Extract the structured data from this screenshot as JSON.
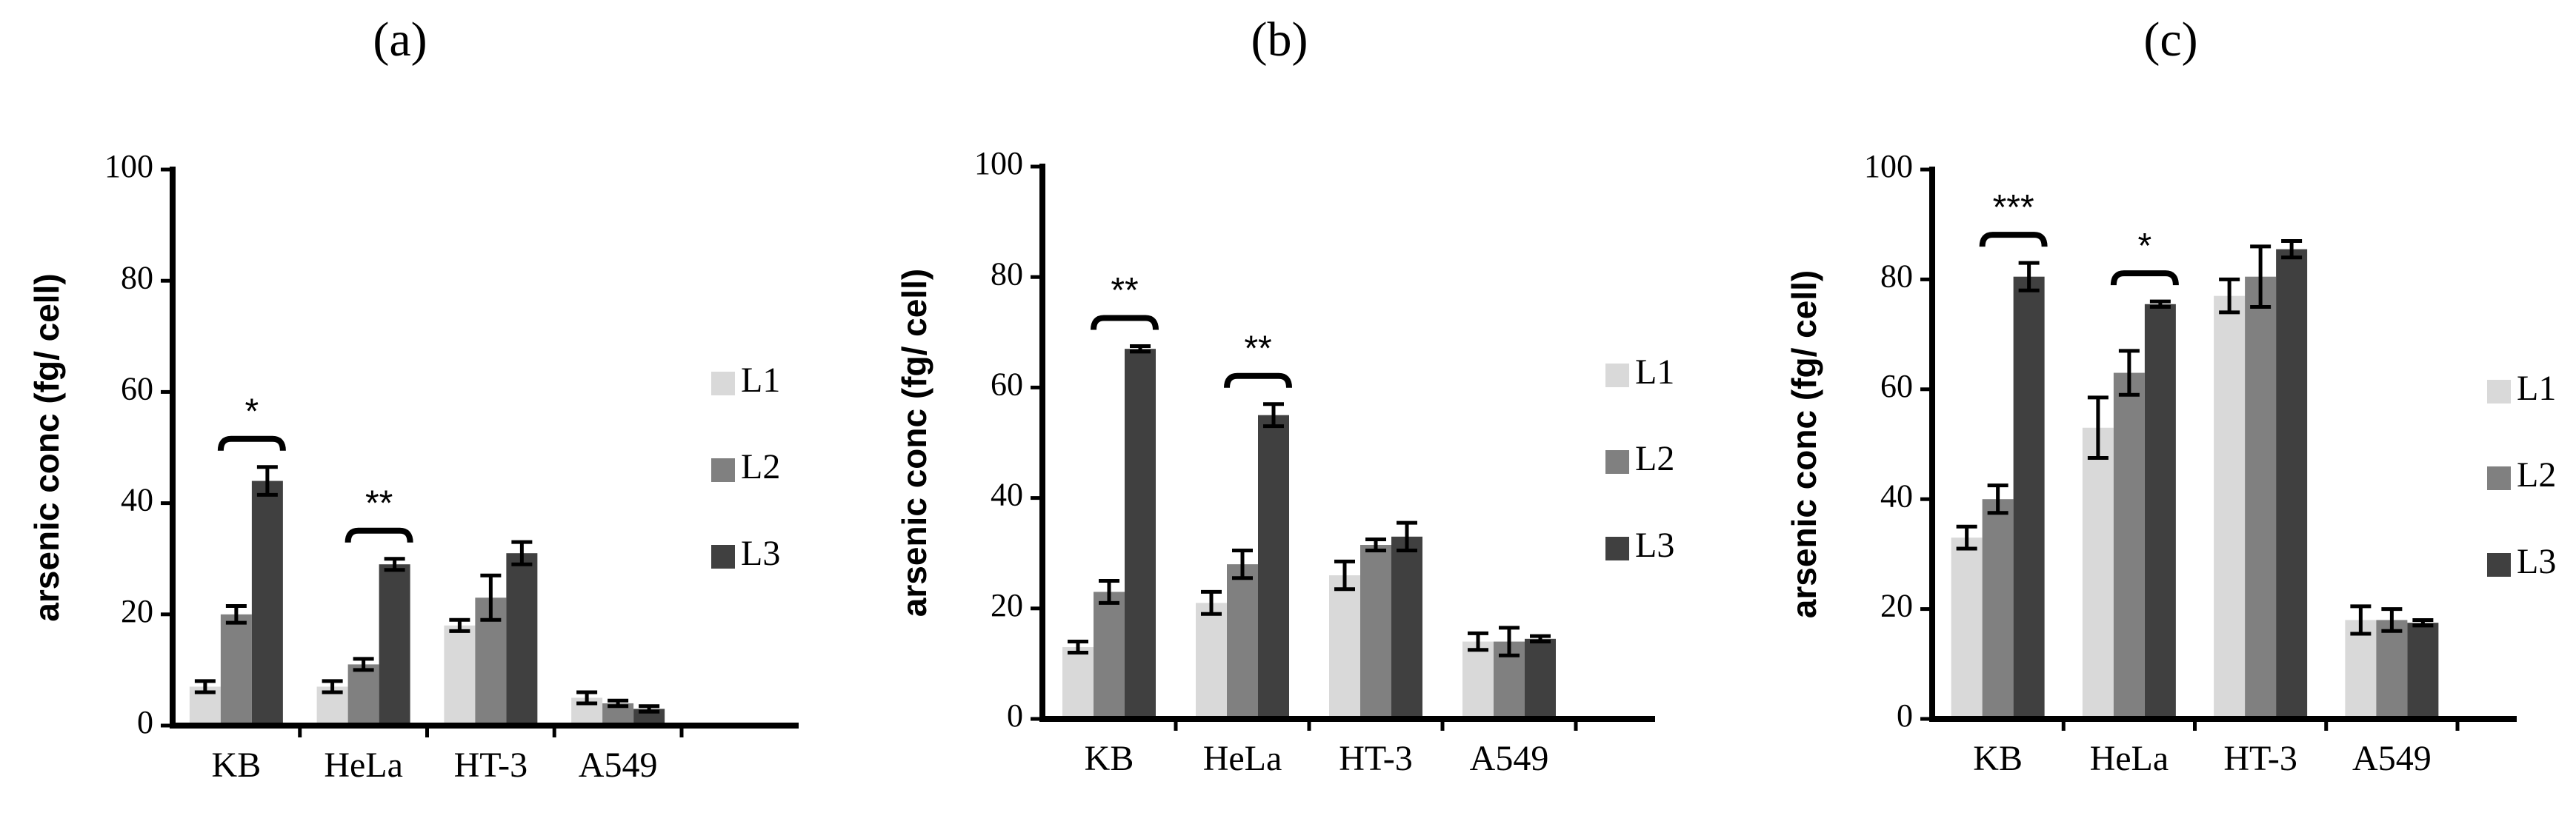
{
  "chart_data": [
    {
      "type": "bar",
      "title": "(a)",
      "ylabel": "arsenic conc (fg/ cell)",
      "categories": [
        "KB",
        "HeLa",
        "HT-3",
        "A549"
      ],
      "series": [
        {
          "name": "L1",
          "color": "#d9d9d9",
          "values": [
            7,
            7,
            18,
            5
          ],
          "errors": [
            1,
            1,
            1,
            1
          ]
        },
        {
          "name": "L2",
          "color": "#808080",
          "values": [
            20,
            11,
            23,
            4
          ],
          "errors": [
            1.5,
            1,
            4,
            0.5
          ]
        },
        {
          "name": "L3",
          "color": "#404040",
          "values": [
            44,
            29,
            31,
            3
          ],
          "errors": [
            2.5,
            1,
            2,
            0.5
          ]
        }
      ],
      "annotations": [
        "*",
        "**",
        null,
        null
      ],
      "ylim": [
        0,
        100
      ],
      "yticks": [
        0,
        20,
        40,
        60,
        80,
        100
      ]
    },
    {
      "type": "bar",
      "title": "(b)",
      "ylabel": "arsenic conc (fg/ cell)",
      "categories": [
        "KB",
        "HeLa",
        "HT-3",
        "A549"
      ],
      "series": [
        {
          "name": "L1",
          "color": "#d9d9d9",
          "values": [
            13,
            21,
            26,
            14
          ],
          "errors": [
            1,
            2,
            2.5,
            1.5
          ]
        },
        {
          "name": "L2",
          "color": "#808080",
          "values": [
            23,
            28,
            31.5,
            14
          ],
          "errors": [
            2,
            2.5,
            1,
            2.5
          ]
        },
        {
          "name": "L3",
          "color": "#404040",
          "values": [
            67,
            55,
            33,
            14.5
          ],
          "errors": [
            0.5,
            2,
            2.5,
            0.5
          ]
        }
      ],
      "annotations": [
        "**",
        "**",
        null,
        null
      ],
      "ylim": [
        0,
        100
      ],
      "yticks": [
        0,
        20,
        40,
        60,
        80,
        100
      ]
    },
    {
      "type": "bar",
      "title": "(c)",
      "ylabel": "arsenic conc (fg/ cell)",
      "categories": [
        "KB",
        "HeLa",
        "HT-3",
        "A549"
      ],
      "series": [
        {
          "name": "L1",
          "color": "#d9d9d9",
          "values": [
            33,
            53,
            77,
            18
          ],
          "errors": [
            2,
            5.5,
            3,
            2.5
          ]
        },
        {
          "name": "L2",
          "color": "#808080",
          "values": [
            40,
            63,
            80.5,
            18
          ],
          "errors": [
            2.5,
            4,
            5.5,
            2
          ]
        },
        {
          "name": "L3",
          "color": "#404040",
          "values": [
            80.5,
            75.5,
            85.5,
            17.5
          ],
          "errors": [
            2.5,
            0.5,
            1.5,
            0.5
          ]
        }
      ],
      "annotations": [
        "***",
        "*",
        null,
        null
      ],
      "ylim": [
        0,
        100
      ],
      "yticks": [
        0,
        20,
        40,
        60,
        80,
        100
      ]
    }
  ]
}
